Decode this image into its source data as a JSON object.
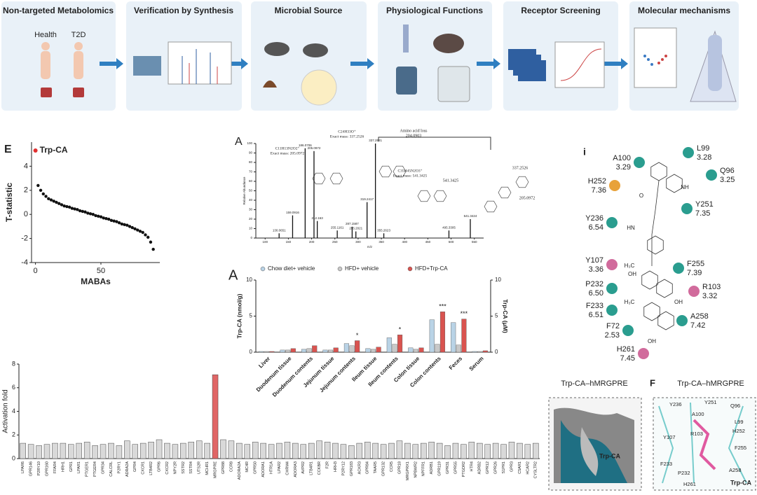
{
  "workflow": {
    "steps": [
      "Non-targeted Metabolomics",
      "Verification by Synthesis",
      "Microbial Source",
      "Physiological Functions",
      "Receptor Screening",
      "Molecular mechanisms"
    ],
    "labels": [
      "Health",
      "T2D"
    ]
  },
  "chart_data": [
    {
      "type": "scatter",
      "panel": "E",
      "ylabel": "T-statistic",
      "xlabel": "MABAs",
      "color": "#111111",
      "x": [
        2,
        4,
        6,
        8,
        10,
        12,
        14,
        16,
        18,
        20,
        22,
        24,
        26,
        28,
        30,
        32,
        34,
        36,
        38,
        40,
        42,
        44,
        46,
        48,
        50,
        52,
        54,
        56,
        58,
        60,
        62,
        64,
        66,
        68,
        70,
        72,
        74,
        76,
        78,
        80,
        82,
        84,
        86,
        88,
        90
      ],
      "values": [
        2.4,
        2.0,
        1.7,
        1.5,
        1.3,
        1.2,
        1.1,
        1.0,
        0.9,
        0.8,
        0.7,
        0.65,
        0.6,
        0.5,
        0.45,
        0.4,
        0.3,
        0.25,
        0.2,
        0.1,
        0.05,
        0.0,
        -0.1,
        -0.15,
        -0.2,
        -0.3,
        -0.35,
        -0.4,
        -0.5,
        -0.55,
        -0.6,
        -0.7,
        -0.8,
        -0.85,
        -0.9,
        -1.0,
        -1.1,
        -1.2,
        -1.3,
        -1.4,
        -1.5,
        -1.7,
        -1.9,
        -2.3,
        -2.9
      ],
      "xlim": [
        -3,
        95
      ],
      "xticks": [
        0,
        50
      ],
      "ylim": [
        -4,
        6
      ],
      "yticks": [
        -4,
        -2,
        0,
        2,
        4
      ],
      "annotations": [
        {
          "text": "Trp-CA",
          "x": 0,
          "y": 5.3,
          "color": "#e03030"
        }
      ]
    },
    {
      "type": "spectrum",
      "panel": "A",
      "ylabel": "Relative Abundance",
      "xlabel": "m/z",
      "color": "#111111",
      "x": [
        130.0651,
        159.0916,
        186.0706,
        205.0972,
        212.163,
        255.1161,
        287.1587,
        295.2021,
        319.2417,
        337.2521,
        355.2623,
        495.3305,
        541.3424
      ],
      "values": [
        5,
        24,
        95,
        92,
        18,
        8,
        12,
        7,
        38,
        100,
        5,
        8,
        20
      ],
      "xlim": [
        80,
        570
      ],
      "xticks": [
        100,
        150,
        200,
        250,
        300,
        350,
        400,
        450,
        500,
        550
      ],
      "ylim": [
        0,
        100
      ],
      "yticks": [
        0,
        10,
        20,
        30,
        40,
        50,
        60,
        70,
        80,
        90,
        100
      ],
      "annotations": [
        "Amino acid loss",
        "204.0903",
        "C11H13N2O2⁺",
        "Exact mass: 205.0972",
        "C24H33O⁺",
        "Exact mass: 337.2526",
        "C35H45N2O3⁺",
        "Exact mass: 541.3425",
        "541.3425",
        "337.2526",
        "205.0972"
      ]
    },
    {
      "type": "grouped-bar",
      "panel": "A",
      "ylabel": "Trp-CA (nmol/g)",
      "y2label": "Trp-CA (μM)",
      "categories": [
        "Liver",
        "Duodenum tissue",
        "Duodenum contents",
        "Jejunum tissue",
        "Jejunum contents",
        "Ileum tissue",
        "Ileum contents",
        "Colon tissue",
        "Colon contents",
        "Feces",
        "Serum"
      ],
      "series": [
        {
          "name": "Chow diet+ vehicle",
          "color": "#b9d3e6",
          "values": [
            0.1,
            0.3,
            0.4,
            0.3,
            1.2,
            0.5,
            2.0,
            0.6,
            4.5,
            4.1,
            0.1
          ]
        },
        {
          "name": "HFD+ vehicle",
          "color": "#c8c8c8",
          "values": [
            0.1,
            0.3,
            0.5,
            0.3,
            0.9,
            0.4,
            1.1,
            0.4,
            1.1,
            1.0,
            0.1
          ]
        },
        {
          "name": "HFD+Trp-CA",
          "color": "#d9534f",
          "values": [
            0.1,
            0.5,
            0.9,
            0.6,
            1.6,
            0.7,
            2.4,
            0.6,
            5.6,
            4.6,
            0.2
          ]
        }
      ],
      "significance": [
        null,
        null,
        null,
        null,
        "*",
        null,
        "*",
        null,
        "***",
        "***",
        null
      ],
      "ylim": [
        0,
        10
      ],
      "yticks": [
        0,
        5,
        10
      ],
      "y2lim": [
        0,
        10
      ],
      "y2ticks": [
        0,
        5,
        10
      ]
    },
    {
      "type": "bar",
      "ylabel": "Activation fold",
      "color": "#d9d9d9",
      "highlight": "MRGPRE",
      "highlight_color": "#e06666",
      "categories": [
        "LPAR6",
        "GPR146",
        "P2RY10",
        "GPR160",
        "FFAR4",
        "HRH1",
        "GPR1",
        "LPAR1",
        "PTGER1",
        "PTGER4",
        "GPR34",
        "CALCRL",
        "P2RY1",
        "ADRA2A",
        "GPR4",
        "CXCR1",
        "LTB4R2",
        "GPR6",
        "CXCR2",
        "NPY2R",
        "SSTR2",
        "SSTR4",
        "UTS2R",
        "MCHR1",
        "MRGPRE",
        "GPR88",
        "CCR8",
        "ADORA2A",
        "MC4R",
        "GPR50",
        "ADORA1",
        "HTR1A",
        "LPAR2",
        "CHRM4",
        "ADORA3",
        "AVPR2",
        "LTB4R1",
        "CCKBR",
        "F2R",
        "HRH3",
        "P2RY12",
        "GPR183",
        "ACKR3",
        "GPR84",
        "TAAR5",
        "GPR132",
        "CCR5",
        "GPR18",
        "MRGPRX1",
        "NPBWR2",
        "NPFFR1",
        "ADRB1",
        "GPR119",
        "GPR31",
        "GPR55",
        "PTGDR2",
        "HTR4",
        "ADRB2",
        "GPR12",
        "GPR26",
        "S1PR1",
        "GPR3",
        "C5AR1",
        "HCAR2",
        "CYSLTR2"
      ],
      "values": [
        1.3,
        1.2,
        1.1,
        1.2,
        1.3,
        1.3,
        1.2,
        1.3,
        1.4,
        1.1,
        1.2,
        1.3,
        1.1,
        1.5,
        1.2,
        1.3,
        1.4,
        1.6,
        1.3,
        1.2,
        1.3,
        1.4,
        1.5,
        1.3,
        7.1,
        1.6,
        1.5,
        1.3,
        1.2,
        1.4,
        1.3,
        1.2,
        1.3,
        1.4,
        1.3,
        1.2,
        1.3,
        1.5,
        1.4,
        1.3,
        1.2,
        1.1,
        1.3,
        1.4,
        1.3,
        1.2,
        1.3,
        1.5,
        1.3,
        1.2,
        1.3,
        1.4,
        1.3,
        1.1,
        1.3,
        1.2,
        1.4,
        1.3,
        1.2,
        1.3,
        1.2,
        1.4,
        1.3,
        1.2,
        1.3
      ],
      "ylim": [
        0,
        8
      ],
      "yticks": [
        0,
        2,
        4,
        6,
        8
      ]
    }
  ],
  "interaction": {
    "panel": "i",
    "residues": [
      {
        "name": "A100",
        "number": "3.29",
        "color": "#2a9d8f"
      },
      {
        "name": "L99",
        "number": "3.28",
        "color": "#2a9d8f"
      },
      {
        "name": "Q96",
        "number": "3.25",
        "color": "#2a9d8f"
      },
      {
        "name": "H252",
        "number": "7.36",
        "color": "#e8a23a"
      },
      {
        "name": "Y251",
        "number": "7.35",
        "color": "#2a9d8f"
      },
      {
        "name": "Y236",
        "number": "6.54",
        "color": "#2a9d8f"
      },
      {
        "name": "Y107",
        "number": "3.36",
        "color": "#d16b9c"
      },
      {
        "name": "F255",
        "number": "7.39",
        "color": "#2a9d8f"
      },
      {
        "name": "P232",
        "number": "6.50",
        "color": "#2a9d8f"
      },
      {
        "name": "R103",
        "number": "3.32",
        "color": "#d16b9c"
      },
      {
        "name": "F233",
        "number": "6.51",
        "color": "#2a9d8f"
      },
      {
        "name": "A258",
        "number": "7.42",
        "color": "#2a9d8f"
      },
      {
        "name": "F72",
        "number": "2.53",
        "color": "#2a9d8f"
      },
      {
        "name": "H261",
        "number": "7.45",
        "color": "#d16b9c"
      }
    ],
    "atoms": [
      "NH",
      "OH",
      "OH",
      "OH",
      "H₃C",
      "H₃C",
      "O",
      "HN"
    ]
  },
  "structures": {
    "panel": "F",
    "titles": [
      "Trp-CA–hMRGPRE",
      "Trp-CA–hMRGPRE"
    ],
    "ligand": [
      "Trp-CA",
      "Trp-CA"
    ],
    "labels": [
      "Y236",
      "Y251",
      "Q96",
      "A100",
      "L99",
      "H252",
      "Y107",
      "R103",
      "F255",
      "F233",
      "P232",
      "A258",
      "H261"
    ]
  }
}
